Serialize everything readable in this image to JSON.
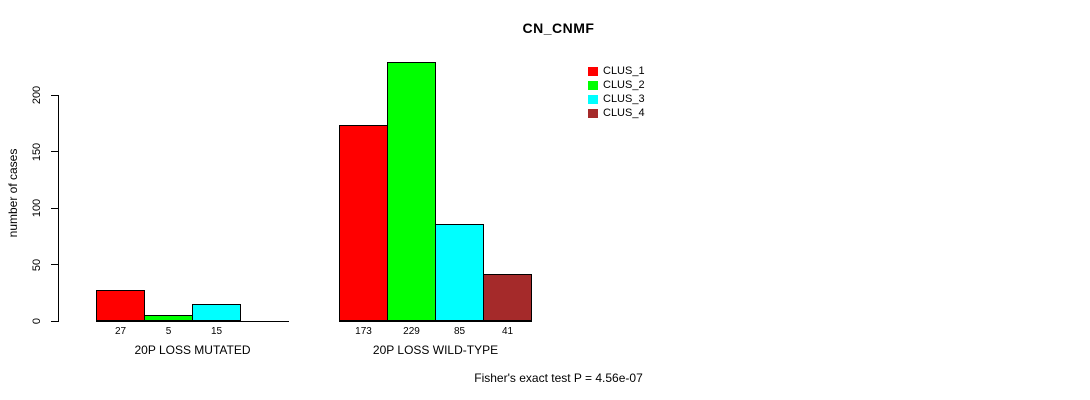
{
  "title": "CN_CNMF",
  "ylabel": "number of cases",
  "footer": "Fisher's exact test P = 4.56e-07",
  "legend": {
    "position": "top-right",
    "items": [
      {
        "label": "CLUS_1",
        "color": "#ff0000"
      },
      {
        "label": "CLUS_2",
        "color": "#00ff00"
      },
      {
        "label": "CLUS_3",
        "color": "#00ffff"
      },
      {
        "label": "CLUS_4",
        "color": "#a52a2a"
      }
    ]
  },
  "chart_data": {
    "type": "bar",
    "title": "CN_CNMF",
    "ylabel": "number of cases",
    "xlabel": "",
    "ylim": [
      0,
      230
    ],
    "yticks": [
      0,
      50,
      100,
      150,
      200
    ],
    "grid": false,
    "legend_position": "top-right",
    "categories": [
      "20P LOSS MUTATED",
      "20P LOSS WILD-TYPE"
    ],
    "series": [
      {
        "name": "CLUS_1",
        "color": "#ff0000",
        "values": [
          27,
          173
        ]
      },
      {
        "name": "CLUS_2",
        "color": "#00ff00",
        "values": [
          5,
          229
        ]
      },
      {
        "name": "CLUS_3",
        "color": "#00ffff",
        "values": [
          15,
          85
        ]
      },
      {
        "name": "CLUS_4",
        "color": "#a52a2a",
        "values": [
          0,
          41
        ]
      }
    ],
    "bar_value_labels": [
      [
        "27",
        "5",
        "15",
        ""
      ],
      [
        "173",
        "229",
        "85",
        "41"
      ]
    ],
    "annotation": "Fisher's exact test P = 4.56e-07"
  }
}
